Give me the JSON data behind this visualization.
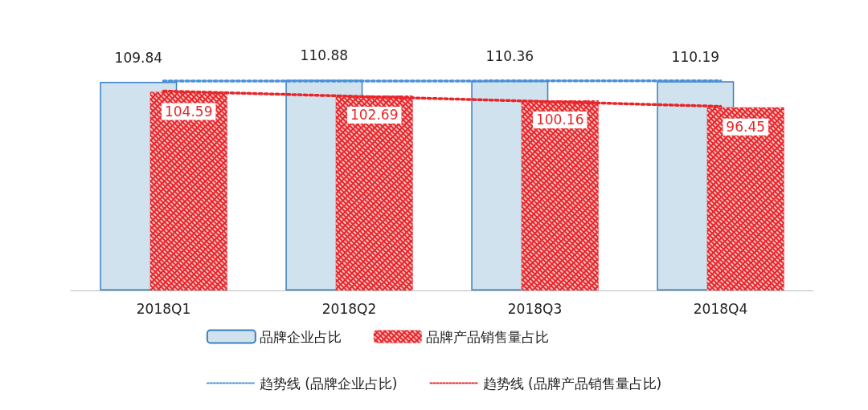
{
  "chart_data": {
    "type": "bar",
    "categories": [
      "2018Q1",
      "2018Q2",
      "2018Q3",
      "2018Q4"
    ],
    "legend": "bottom",
    "grid": false,
    "series": [
      {
        "name": "品牌企业占比",
        "color": "#cfe2ee",
        "values": [
          109.84,
          110.88,
          110.36,
          110.19
        ],
        "value_labels": [
          "109.84",
          "110.88",
          "110.36",
          "110.19"
        ]
      },
      {
        "name": "品牌产品销售量占比",
        "color": "#e8262a",
        "values": [
          104.59,
          102.69,
          100.16,
          96.45
        ],
        "value_labels": [
          "104.59",
          "102.69",
          "100.16",
          "96.45"
        ]
      },
      {
        "name": "趋势线 (品牌企业占比)",
        "type": "line",
        "color": "#4a90d9",
        "line_style": "dotted",
        "marker": "none",
        "values": [
          110.24,
          110.29,
          110.35,
          110.4
        ]
      },
      {
        "name": "趋势线 (品牌产品销售量占比)",
        "type": "line",
        "color": "#e8262a",
        "line_style": "dotted",
        "marker": "none",
        "values": [
          105.01,
          102.32,
          99.63,
          96.93
        ]
      }
    ]
  }
}
